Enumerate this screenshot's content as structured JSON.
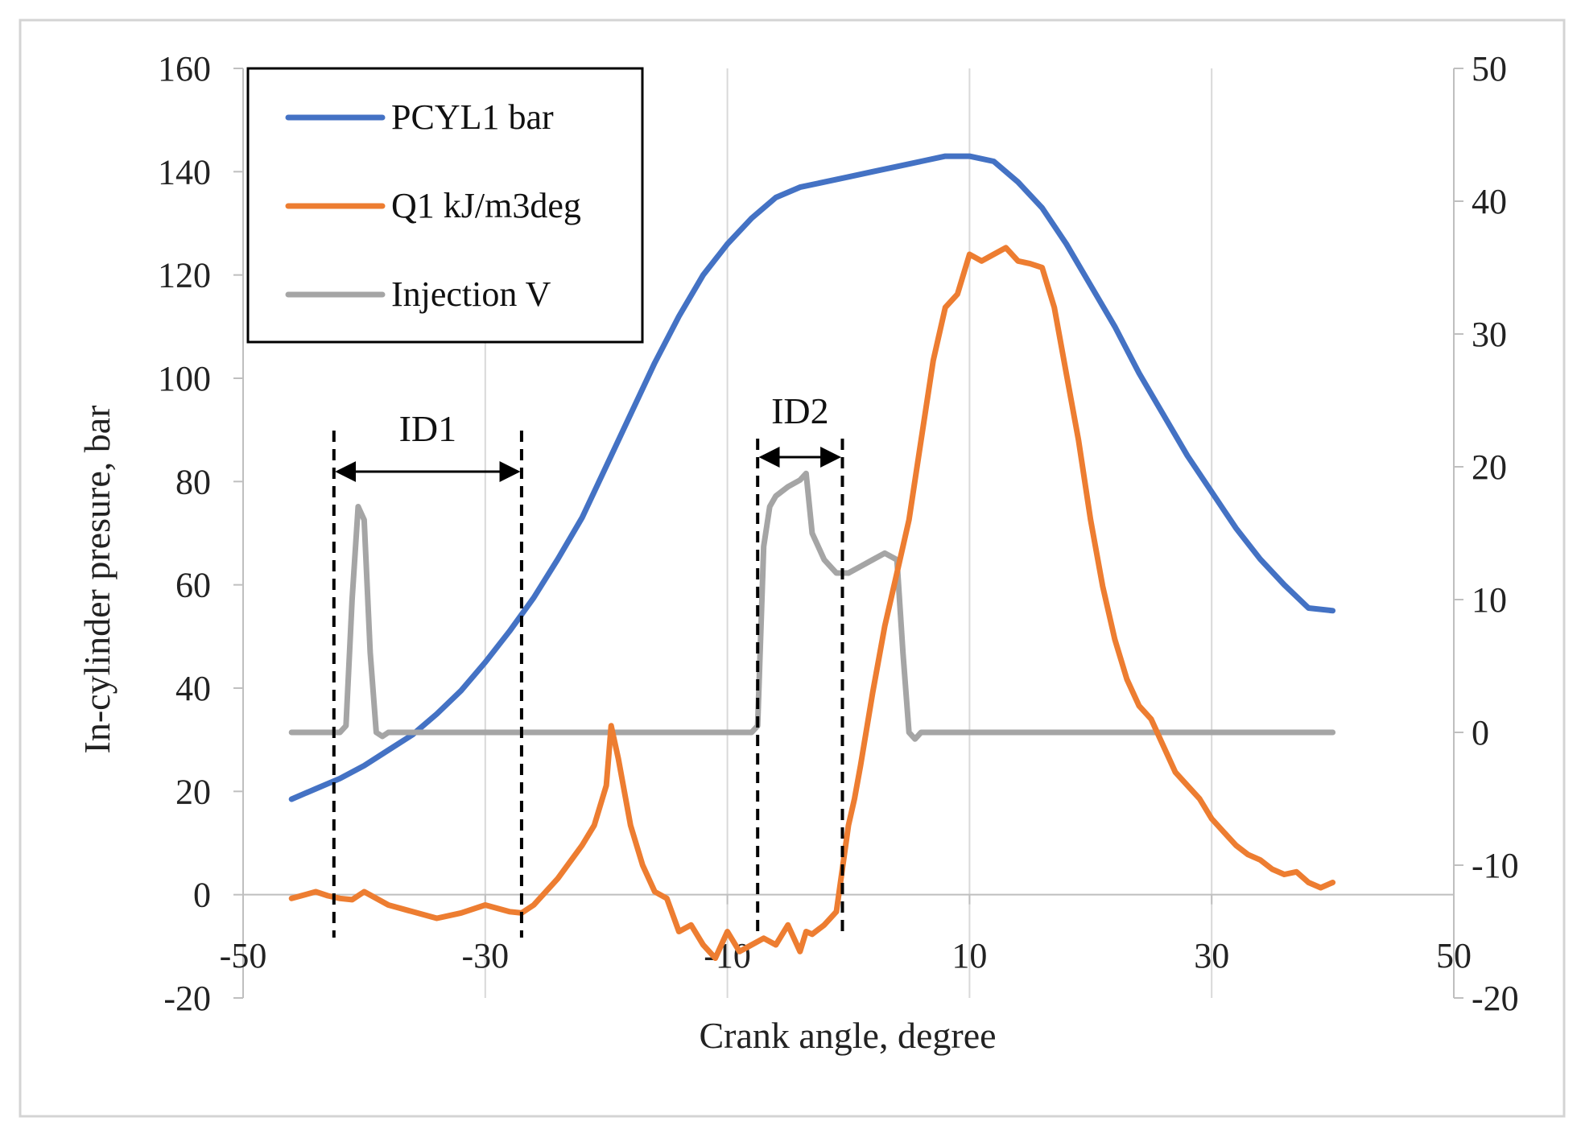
{
  "chart_data": {
    "type": "line",
    "title": "",
    "xlabel": "Crank angle, degree",
    "ylabel": "In-cylinder presure, bar",
    "y2label": "",
    "xlim": [
      -50,
      50
    ],
    "ylim": [
      -20,
      160
    ],
    "y2lim": [
      -20,
      50
    ],
    "xticks": [
      -50,
      -30,
      -10,
      10,
      30,
      50
    ],
    "yticks": [
      -20,
      0,
      20,
      40,
      60,
      80,
      100,
      120,
      140,
      160
    ],
    "y2ticks": [
      -20,
      -10,
      0,
      10,
      20,
      30,
      40,
      50
    ],
    "grid": "vertical",
    "legend_position": "top-left",
    "series": [
      {
        "name": "PCYL1 bar",
        "axis": "left",
        "color": "#4472C4",
        "x": [
          -46,
          -44,
          -42,
          -40,
          -38,
          -36,
          -34,
          -32,
          -30,
          -28,
          -26,
          -24,
          -22,
          -20,
          -18,
          -16,
          -14,
          -12,
          -10,
          -8,
          -6,
          -4,
          -2,
          0,
          2,
          4,
          6,
          8,
          10,
          12,
          14,
          16,
          18,
          20,
          22,
          24,
          26,
          28,
          30,
          32,
          34,
          36,
          38,
          40
        ],
        "y": [
          18.5,
          20.5,
          22.5,
          25,
          28,
          31,
          35,
          39.5,
          45,
          51,
          57.5,
          65,
          73,
          83,
          93,
          103,
          112,
          120,
          126,
          131,
          135,
          137,
          138,
          139,
          140,
          141,
          142,
          143,
          143,
          142,
          138,
          133,
          126,
          118,
          110,
          101,
          93,
          85,
          78,
          71,
          65,
          60,
          55.5,
          55
        ]
      },
      {
        "name": "Q1 kJ/m3deg",
        "axis": "right",
        "color": "#ED7D31",
        "x": [
          -46,
          -44,
          -43,
          -42,
          -41,
          -40,
          -38,
          -36,
          -34,
          -32,
          -30,
          -28,
          -27,
          -26,
          -24,
          -22,
          -21,
          -20,
          -19.6,
          -19,
          -18,
          -17,
          -16,
          -15,
          -14,
          -13,
          -12,
          -11,
          -10,
          -9,
          -8,
          -7,
          -6,
          -5,
          -4,
          -3.5,
          -3,
          -2,
          -1,
          0,
          0.5,
          1,
          2,
          3,
          4,
          5,
          6,
          7,
          8,
          9,
          10,
          11,
          12,
          13,
          14,
          15,
          16,
          17,
          18,
          19,
          20,
          21,
          22,
          23,
          24,
          25,
          26,
          27,
          28,
          29,
          30,
          31,
          32,
          33,
          34,
          35,
          36,
          37,
          38,
          39,
          40
        ],
        "y": [
          -12.5,
          -12,
          -12.3,
          -12.5,
          -12.6,
          -12,
          -13,
          -13.5,
          -14,
          -13.6,
          -13,
          -13.5,
          -13.6,
          -13,
          -11,
          -8.5,
          -7,
          -4,
          0.5,
          -2,
          -7,
          -10,
          -12,
          -12.5,
          -15,
          -14.5,
          -16,
          -17,
          -15,
          -16.5,
          -16,
          -15.5,
          -16,
          -14.5,
          -16.5,
          -15,
          -15.2,
          -14.5,
          -13.5,
          -7,
          -5,
          -2.5,
          3,
          8,
          12,
          16,
          22,
          28,
          32,
          33,
          36,
          35.5,
          36,
          36.5,
          35.5,
          35.3,
          35,
          32,
          27,
          22,
          16,
          11,
          7,
          4,
          2,
          1,
          -1,
          -3,
          -4,
          -5,
          -6.5,
          -7.5,
          -8.5,
          -9.2,
          -9.6,
          -10.3,
          -10.7,
          -10.5,
          -11.3,
          -11.7,
          -11.3
        ]
      },
      {
        "name": "Injection V",
        "axis": "right",
        "color": "#A5A5A5",
        "x": [
          -46,
          -42,
          -41.5,
          -41,
          -40.5,
          -40,
          -39.5,
          -39,
          -38.5,
          -38,
          -37.5,
          -37,
          -10,
          -8,
          -7.5,
          -7,
          -6.5,
          -6,
          -5,
          -4,
          -3.5,
          -3,
          -2,
          -1,
          0,
          1,
          2,
          3,
          4,
          4.5,
          5,
          5.5,
          6,
          40
        ],
        "y": [
          0,
          0,
          0.5,
          10,
          17,
          16,
          6,
          0,
          -0.3,
          0,
          0,
          0,
          0,
          0,
          0.5,
          14,
          17,
          17.8,
          18.5,
          19,
          19.5,
          15,
          13,
          12,
          12,
          12.5,
          13,
          13.5,
          13,
          6,
          0,
          -0.5,
          0,
          0
        ]
      }
    ],
    "annotations": [
      {
        "label": "ID1",
        "x_start": -42.5,
        "x_end": -27
      },
      {
        "label": "ID2",
        "x_start": -7.5,
        "x_end": -0.5
      }
    ]
  }
}
